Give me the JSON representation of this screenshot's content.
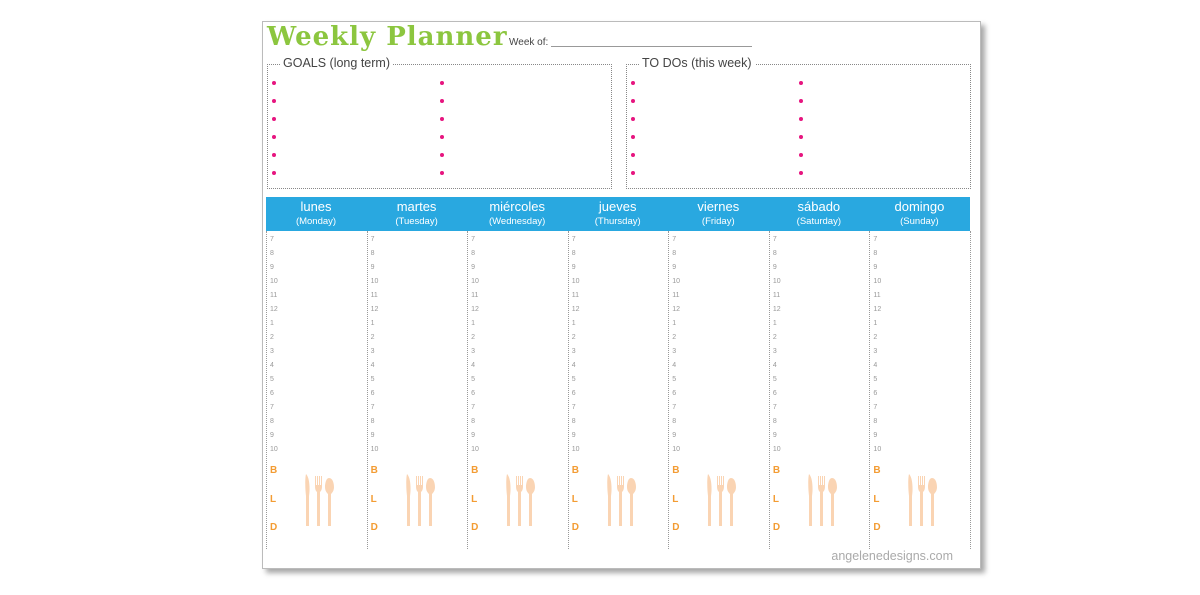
{
  "header": {
    "title": "Weekly Planner",
    "week_of": "Week of:"
  },
  "goals": {
    "title": "GOALS (long term)"
  },
  "todos": {
    "title": "TO DOs (this week)"
  },
  "days": [
    {
      "name": "lunes",
      "english": "(Monday)"
    },
    {
      "name": "martes",
      "english": "(Tuesday)"
    },
    {
      "name": "miércoles",
      "english": "(Wednesday)"
    },
    {
      "name": "jueves",
      "english": "(Thursday)"
    },
    {
      "name": "viernes",
      "english": "(Friday)"
    },
    {
      "name": "sábado",
      "english": "(Saturday)"
    },
    {
      "name": "domingo",
      "english": "(Sunday)"
    }
  ],
  "hours": [
    7,
    8,
    9,
    10,
    11,
    12,
    1,
    2,
    3,
    4,
    5,
    6,
    7,
    8,
    9,
    10
  ],
  "meals": [
    "B",
    "L",
    "D"
  ],
  "footer": "angelenedesigns.com"
}
